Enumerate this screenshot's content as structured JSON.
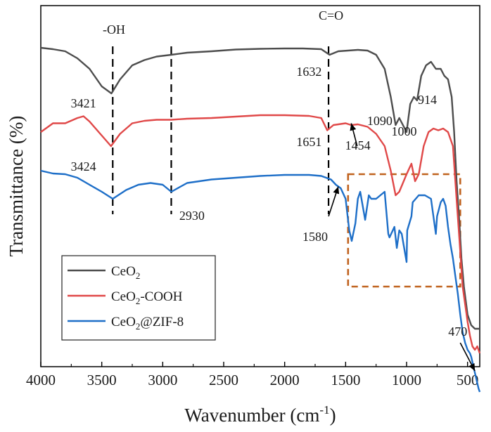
{
  "chart_data": {
    "type": "line",
    "xlabel": "Wavenumber (cm⁻¹)",
    "ylabel": "Transmittance (%)",
    "xlim": [
      4000,
      400
    ],
    "x_reversed": true,
    "y_ticks_shown": false,
    "grid": false,
    "legend_position": "bottom-left",
    "x_ticks": [
      4000,
      3500,
      3000,
      2500,
      2000,
      1500,
      1000,
      500
    ],
    "x_tick_labels": [
      "4000",
      "3500",
      "3000",
      "2500",
      "2000",
      "1500",
      "1000",
      "500"
    ],
    "series": [
      {
        "name": "CeO₂",
        "color": "#4d4d4d",
        "x": [
          4000,
          3900,
          3800,
          3700,
          3600,
          3500,
          3421,
          3350,
          3250,
          3150,
          3050,
          2930,
          2800,
          2600,
          2400,
          2200,
          2000,
          1850,
          1700,
          1632,
          1560,
          1480,
          1400,
          1320,
          1250,
          1180,
          1130,
          1090,
          1060,
          1000,
          970,
          940,
          914,
          880,
          840,
          800,
          760,
          720,
          690,
          660,
          630,
          610,
          590,
          570,
          550,
          530,
          500,
          470,
          440,
          410,
          400
        ],
        "y": [
          0.88,
          0.876,
          0.87,
          0.85,
          0.82,
          0.77,
          0.75,
          0.79,
          0.83,
          0.845,
          0.855,
          0.86,
          0.866,
          0.87,
          0.875,
          0.877,
          0.878,
          0.878,
          0.876,
          0.86,
          0.87,
          0.872,
          0.874,
          0.872,
          0.86,
          0.82,
          0.74,
          0.66,
          0.68,
          0.64,
          0.72,
          0.74,
          0.73,
          0.8,
          0.83,
          0.84,
          0.82,
          0.82,
          0.8,
          0.79,
          0.74,
          0.64,
          0.5,
          0.4,
          0.28,
          0.2,
          0.12,
          0.09,
          0.08,
          0.08,
          0.08
        ]
      },
      {
        "name": "CeO₂-COOH",
        "color": "#e04848",
        "x": [
          4000,
          3900,
          3800,
          3700,
          3650,
          3600,
          3500,
          3424,
          3350,
          3250,
          3150,
          3050,
          2930,
          2800,
          2600,
          2400,
          2200,
          2000,
          1800,
          1700,
          1651,
          1600,
          1500,
          1454,
          1400,
          1320,
          1250,
          1180,
          1130,
          1090,
          1060,
          1000,
          960,
          930,
          900,
          860,
          820,
          780,
          740,
          700,
          660,
          620,
          600,
          580,
          560,
          540,
          520,
          500,
          480,
          460,
          440,
          420,
          400
        ],
        "y": [
          0.64,
          0.665,
          0.665,
          0.68,
          0.685,
          0.67,
          0.63,
          0.6,
          0.635,
          0.665,
          0.672,
          0.675,
          0.675,
          0.678,
          0.68,
          0.684,
          0.688,
          0.688,
          0.686,
          0.68,
          0.645,
          0.66,
          0.665,
          0.66,
          0.662,
          0.655,
          0.635,
          0.6,
          0.53,
          0.46,
          0.47,
          0.52,
          0.55,
          0.5,
          0.52,
          0.6,
          0.64,
          0.65,
          0.645,
          0.65,
          0.64,
          0.6,
          0.5,
          0.4,
          0.3,
          0.2,
          0.15,
          0.1,
          0.06,
          0.03,
          0.02,
          0.03,
          0.01
        ]
      },
      {
        "name": "CeO₂@ZIF-8",
        "color": "#1e6fc8",
        "x": [
          4000,
          3900,
          3800,
          3700,
          3600,
          3500,
          3410,
          3300,
          3200,
          3100,
          3000,
          2930,
          2800,
          2600,
          2400,
          2200,
          2000,
          1800,
          1700,
          1620,
          1580,
          1540,
          1500,
          1470,
          1450,
          1420,
          1400,
          1380,
          1340,
          1310,
          1290,
          1250,
          1180,
          1150,
          1140,
          1100,
          1080,
          1060,
          1040,
          1000,
          995,
          960,
          950,
          900,
          850,
          800,
          760,
          750,
          720,
          700,
          680,
          660,
          640,
          620,
          600,
          580,
          560,
          540,
          520,
          500,
          480,
          470,
          450,
          430,
          410,
          400
        ],
        "y": [
          0.53,
          0.522,
          0.52,
          0.51,
          0.49,
          0.47,
          0.45,
          0.475,
          0.49,
          0.495,
          0.49,
          0.47,
          0.495,
          0.505,
          0.51,
          0.515,
          0.518,
          0.518,
          0.515,
          0.505,
          0.49,
          0.48,
          0.45,
          0.36,
          0.33,
          0.38,
          0.45,
          0.47,
          0.39,
          0.46,
          0.45,
          0.45,
          0.47,
          0.35,
          0.34,
          0.37,
          0.31,
          0.36,
          0.35,
          0.27,
          0.36,
          0.4,
          0.44,
          0.46,
          0.46,
          0.45,
          0.35,
          0.4,
          0.44,
          0.45,
          0.43,
          0.37,
          0.32,
          0.28,
          0.23,
          0.18,
          0.12,
          0.07,
          0.04,
          0.02,
          0.01,
          0.0,
          -0.03,
          -0.06,
          -0.09,
          -0.1
        ]
      }
    ],
    "reference_lines": [
      {
        "x": 3410,
        "style": "dashed"
      },
      {
        "x": 2930,
        "style": "dashed"
      },
      {
        "x": 1640,
        "style": "dashed"
      }
    ],
    "annotations": [
      {
        "text": "-OH",
        "x": 3400,
        "y": 0.92
      },
      {
        "text": "C=O",
        "x": 1620,
        "y": 0.96
      },
      {
        "text": "3421",
        "x": 3650,
        "y": 0.71
      },
      {
        "text": "3424",
        "x": 3650,
        "y": 0.53
      },
      {
        "text": "1632",
        "x": 1800,
        "y": 0.8
      },
      {
        "text": "1651",
        "x": 1800,
        "y": 0.6
      },
      {
        "text": "1090",
        "x": 1220,
        "y": 0.66
      },
      {
        "text": "1000",
        "x": 1020,
        "y": 0.63
      },
      {
        "text": "914",
        "x": 830,
        "y": 0.72
      },
      {
        "text": "1454",
        "x": 1400,
        "y": 0.59
      },
      {
        "text": "2930",
        "x": 2760,
        "y": 0.39
      },
      {
        "text": "1580",
        "x": 1750,
        "y": 0.33
      },
      {
        "text": "470",
        "x": 580,
        "y": 0.06
      }
    ],
    "arrow_annotations": [
      {
        "label": "1454",
        "from": [
          1405,
          0.6
        ],
        "to": [
          1454,
          0.665
        ]
      },
      {
        "label": "1580",
        "from": [
          1640,
          0.4
        ],
        "to": [
          1560,
          0.485
        ]
      },
      {
        "label": "470",
        "from": [
          560,
          0.04
        ],
        "to": [
          440,
          -0.04
        ]
      }
    ],
    "highlight_box": {
      "x": [
        1480,
        560
      ],
      "y": [
        0.2,
        0.52
      ],
      "color": "#c0621e",
      "style": "dashed"
    }
  },
  "legend": {
    "items": [
      {
        "base": "CeO",
        "sub": "2",
        "rest": "",
        "color": "#4d4d4d"
      },
      {
        "base": "CeO",
        "sub": "2",
        "rest": "-COOH",
        "color": "#e04848"
      },
      {
        "base": "CeO",
        "sub": "2",
        "rest": "@ZIF-8",
        "color": "#1e6fc8"
      }
    ]
  },
  "axes": {
    "ylabel": "Transmittance (%)",
    "xlabel_main": "Wavenumber (cm",
    "xlabel_sup": "-1",
    "xlabel_close": ")"
  }
}
